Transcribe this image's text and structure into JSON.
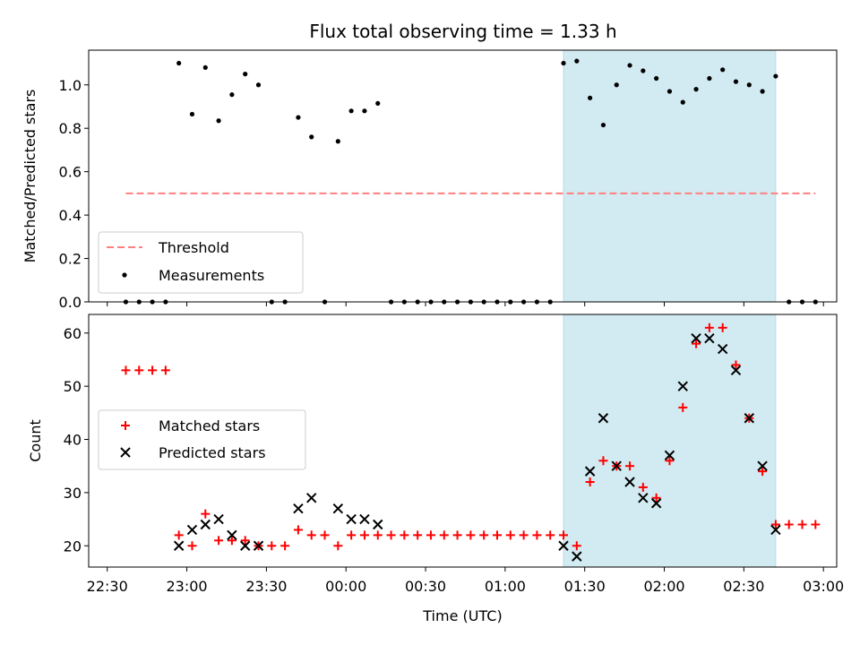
{
  "figure": {
    "title": "Flux total observing time = 1.33 h"
  },
  "chart_data": [
    {
      "type": "scatter",
      "ylabel": "Matched/Predicted stars",
      "xlabel": "",
      "ylim": [
        0,
        1.16
      ],
      "xlim": [
        "22:23",
        "03:05"
      ],
      "yticks": [
        0.0,
        0.2,
        0.4,
        0.6,
        0.8,
        1.0
      ],
      "ytick_labels": [
        "0.0",
        "0.2",
        "0.4",
        "0.6",
        "0.8",
        "1.0"
      ],
      "grid": false,
      "legend": {
        "placement": "lower-left",
        "entries": [
          "Threshold",
          "Measurements"
        ]
      },
      "shaded_region": {
        "x_start": "01:22",
        "x_end": "02:42",
        "color": "#add8e6"
      },
      "threshold": {
        "name": "Threshold",
        "y": 0.5,
        "x_start": "22:37",
        "x_end": "02:57",
        "color": "#ff7f7f",
        "style": "dashed"
      },
      "series": [
        {
          "name": "Measurements",
          "marker": "dot",
          "color": "#000000",
          "points": [
            [
              "22:37",
              0
            ],
            [
              "22:42",
              0
            ],
            [
              "22:47",
              0
            ],
            [
              "22:52",
              0
            ],
            [
              "22:57",
              1.1
            ],
            [
              "23:02",
              0.865
            ],
            [
              "23:07",
              1.08
            ],
            [
              "23:12",
              0.835
            ],
            [
              "23:17",
              0.955
            ],
            [
              "23:22",
              1.05
            ],
            [
              "23:27",
              1.0
            ],
            [
              "23:32",
              0
            ],
            [
              "23:37",
              0
            ],
            [
              "23:42",
              0.85
            ],
            [
              "23:47",
              0.76
            ],
            [
              "23:52",
              0
            ],
            [
              "23:57",
              0.74
            ],
            [
              "00:02",
              0.88
            ],
            [
              "00:07",
              0.88
            ],
            [
              "00:12",
              0.915
            ],
            [
              "00:17",
              0
            ],
            [
              "00:22",
              0
            ],
            [
              "00:27",
              0
            ],
            [
              "00:32",
              0
            ],
            [
              "00:37",
              0
            ],
            [
              "00:42",
              0
            ],
            [
              "00:47",
              0
            ],
            [
              "00:52",
              0
            ],
            [
              "00:57",
              0
            ],
            [
              "01:02",
              0
            ],
            [
              "01:07",
              0
            ],
            [
              "01:12",
              0
            ],
            [
              "01:17",
              0
            ],
            [
              "01:22",
              1.1
            ],
            [
              "01:27",
              1.11
            ],
            [
              "01:32",
              0.94
            ],
            [
              "01:37",
              0.815
            ],
            [
              "01:42",
              1.0
            ],
            [
              "01:47",
              1.09
            ],
            [
              "01:52",
              1.065
            ],
            [
              "01:57",
              1.03
            ],
            [
              "02:02",
              0.97
            ],
            [
              "02:07",
              0.92
            ],
            [
              "02:12",
              0.98
            ],
            [
              "02:17",
              1.03
            ],
            [
              "02:22",
              1.07
            ],
            [
              "02:27",
              1.015
            ],
            [
              "02:32",
              1.0
            ],
            [
              "02:37",
              0.97
            ],
            [
              "02:42",
              1.04
            ],
            [
              "02:47",
              0
            ],
            [
              "02:52",
              0
            ],
            [
              "02:57",
              0
            ]
          ]
        }
      ]
    },
    {
      "type": "scatter",
      "ylabel": "Count",
      "xlabel": "Time (UTC)",
      "ylim": [
        16,
        63.5
      ],
      "xlim": [
        "22:23",
        "03:05"
      ],
      "yticks": [
        20,
        30,
        40,
        50,
        60
      ],
      "ytick_labels": [
        "20",
        "30",
        "40",
        "50",
        "60"
      ],
      "xticks": [
        "22:30",
        "23:00",
        "23:30",
        "00:00",
        "00:30",
        "01:00",
        "01:30",
        "02:00",
        "02:30",
        "03:00"
      ],
      "grid": false,
      "legend": {
        "placement": "center-left",
        "entries": [
          "Matched stars",
          "Predicted stars"
        ]
      },
      "shaded_region": {
        "x_start": "01:22",
        "x_end": "02:42",
        "color": "#add8e6"
      },
      "series": [
        {
          "name": "Matched stars",
          "marker": "plus",
          "color": "#ff0000",
          "points": [
            [
              "22:37",
              53
            ],
            [
              "22:42",
              53
            ],
            [
              "22:47",
              53
            ],
            [
              "22:52",
              53
            ],
            [
              "22:57",
              22
            ],
            [
              "23:02",
              20
            ],
            [
              "23:07",
              26
            ],
            [
              "23:12",
              21
            ],
            [
              "23:17",
              21
            ],
            [
              "23:22",
              21
            ],
            [
              "23:27",
              20
            ],
            [
              "23:32",
              20
            ],
            [
              "23:37",
              20
            ],
            [
              "23:42",
              23
            ],
            [
              "23:47",
              22
            ],
            [
              "23:52",
              22
            ],
            [
              "23:57",
              20
            ],
            [
              "00:02",
              22
            ],
            [
              "00:07",
              22
            ],
            [
              "00:12",
              22
            ],
            [
              "00:17",
              22
            ],
            [
              "00:22",
              22
            ],
            [
              "00:27",
              22
            ],
            [
              "00:32",
              22
            ],
            [
              "00:37",
              22
            ],
            [
              "00:42",
              22
            ],
            [
              "00:47",
              22
            ],
            [
              "00:52",
              22
            ],
            [
              "00:57",
              22
            ],
            [
              "01:02",
              22
            ],
            [
              "01:07",
              22
            ],
            [
              "01:12",
              22
            ],
            [
              "01:17",
              22
            ],
            [
              "01:22",
              22
            ],
            [
              "01:27",
              20
            ],
            [
              "01:32",
              32
            ],
            [
              "01:37",
              36
            ],
            [
              "01:42",
              35
            ],
            [
              "01:47",
              35
            ],
            [
              "01:52",
              31
            ],
            [
              "01:57",
              29
            ],
            [
              "02:02",
              36
            ],
            [
              "02:07",
              46
            ],
            [
              "02:12",
              58
            ],
            [
              "02:17",
              61
            ],
            [
              "02:22",
              61
            ],
            [
              "02:27",
              54
            ],
            [
              "02:32",
              44
            ],
            [
              "02:37",
              34
            ],
            [
              "02:42",
              24
            ],
            [
              "02:47",
              24
            ],
            [
              "02:52",
              24
            ],
            [
              "02:57",
              24
            ]
          ]
        },
        {
          "name": "Predicted stars",
          "marker": "x",
          "color": "#000000",
          "points": [
            [
              "22:57",
              20
            ],
            [
              "23:02",
              23
            ],
            [
              "23:07",
              24
            ],
            [
              "23:12",
              25
            ],
            [
              "23:17",
              22
            ],
            [
              "23:22",
              20
            ],
            [
              "23:27",
              20
            ],
            [
              "23:42",
              27
            ],
            [
              "23:47",
              29
            ],
            [
              "23:57",
              27
            ],
            [
              "00:02",
              25
            ],
            [
              "00:07",
              25
            ],
            [
              "00:12",
              24
            ],
            [
              "01:22",
              20
            ],
            [
              "01:27",
              18
            ],
            [
              "01:32",
              34
            ],
            [
              "01:37",
              44
            ],
            [
              "01:42",
              35
            ],
            [
              "01:47",
              32
            ],
            [
              "01:52",
              29
            ],
            [
              "01:57",
              28
            ],
            [
              "02:02",
              37
            ],
            [
              "02:07",
              50
            ],
            [
              "02:12",
              59
            ],
            [
              "02:17",
              59
            ],
            [
              "02:22",
              57
            ],
            [
              "02:27",
              53
            ],
            [
              "02:32",
              44
            ],
            [
              "02:37",
              35
            ],
            [
              "02:42",
              23
            ]
          ]
        }
      ]
    }
  ]
}
